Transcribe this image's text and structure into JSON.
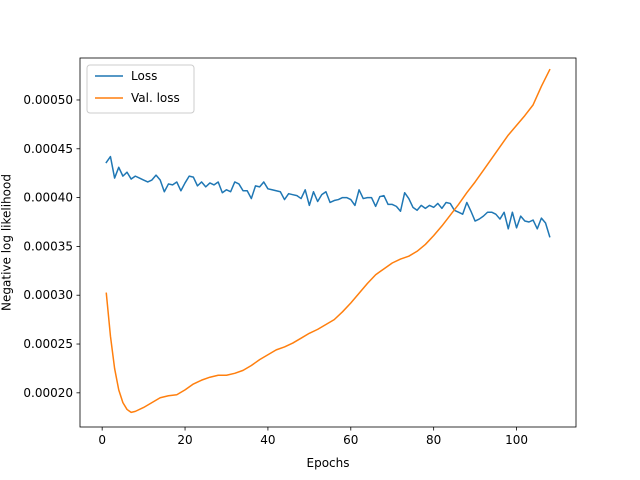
{
  "chart_data": {
    "type": "line",
    "title": "",
    "xlabel": "Epochs",
    "ylabel": "Negative log likelihood",
    "xlim": [
      -5.35,
      114.35
    ],
    "ylim": [
      0.000165,
      0.000543
    ],
    "xticks": [
      0,
      20,
      40,
      60,
      80,
      100
    ],
    "xtick_labels": [
      "0",
      "20",
      "40",
      "60",
      "80",
      "100"
    ],
    "yticks": [
      0.0002,
      0.00025,
      0.0003,
      0.00035,
      0.0004,
      0.00045,
      0.0005
    ],
    "ytick_labels": [
      "0.00020",
      "0.00025",
      "0.00030",
      "0.00035",
      "0.00040",
      "0.00045",
      "0.00050"
    ],
    "grid": false,
    "legend_position": "top-left",
    "series": [
      {
        "name": "Loss",
        "color": "#1f77b4",
        "x": [
          1,
          2,
          3,
          4,
          5,
          6,
          7,
          8,
          9,
          10,
          11,
          12,
          13,
          14,
          15,
          16,
          17,
          18,
          19,
          20,
          21,
          22,
          23,
          24,
          25,
          26,
          27,
          28,
          29,
          30,
          31,
          32,
          33,
          34,
          35,
          36,
          37,
          38,
          39,
          40,
          41,
          42,
          43,
          44,
          45,
          46,
          47,
          48,
          49,
          50,
          51,
          52,
          53,
          54,
          55,
          56,
          57,
          58,
          59,
          60,
          61,
          62,
          63,
          64,
          65,
          66,
          67,
          68,
          69,
          70,
          71,
          72,
          73,
          74,
          75,
          76,
          77,
          78,
          79,
          80,
          81,
          82,
          83,
          84,
          85,
          86,
          87,
          88,
          89,
          90,
          91,
          92,
          93,
          94,
          95,
          96,
          97,
          98,
          99,
          100,
          101,
          102,
          103,
          104,
          105,
          106,
          107,
          108
        ],
        "values": [
          0.000436,
          0.000442,
          0.00042,
          0.000431,
          0.000422,
          0.000426,
          0.000419,
          0.000422,
          0.00042,
          0.000418,
          0.000416,
          0.000418,
          0.000423,
          0.000418,
          0.000406,
          0.000414,
          0.000413,
          0.000416,
          0.000407,
          0.000415,
          0.000422,
          0.000421,
          0.000412,
          0.000416,
          0.000411,
          0.000415,
          0.000413,
          0.000416,
          0.000405,
          0.000408,
          0.000406,
          0.000416,
          0.000414,
          0.000407,
          0.000407,
          0.000399,
          0.000412,
          0.000411,
          0.000416,
          0.000409,
          0.000408,
          0.000407,
          0.000406,
          0.000398,
          0.000404,
          0.000403,
          0.000402,
          0.000399,
          0.000408,
          0.000392,
          0.000406,
          0.000396,
          0.000403,
          0.000406,
          0.000395,
          0.000397,
          0.000398,
          0.0004,
          0.0004,
          0.000398,
          0.000392,
          0.000408,
          0.000399,
          0.0004,
          0.0004,
          0.000391,
          0.000401,
          0.000402,
          0.000393,
          0.000393,
          0.000391,
          0.000386,
          0.000405,
          0.000399,
          0.00039,
          0.000387,
          0.000392,
          0.000389,
          0.000392,
          0.00039,
          0.000394,
          0.000389,
          0.000395,
          0.000394,
          0.000387,
          0.000385,
          0.000383,
          0.000395,
          0.000386,
          0.000376,
          0.000378,
          0.000381,
          0.000385,
          0.000385,
          0.000383,
          0.000378,
          0.000385,
          0.000368,
          0.000385,
          0.000369,
          0.000381,
          0.000376,
          0.000375,
          0.000377,
          0.000368,
          0.000379,
          0.000374,
          0.00036
        ]
      },
      {
        "name": "Val. loss",
        "color": "#ff7f0e",
        "x": [
          1,
          2,
          3,
          4,
          5,
          6,
          7,
          8,
          10,
          12,
          14,
          16,
          18,
          20,
          22,
          24,
          26,
          28,
          30,
          32,
          34,
          36,
          38,
          40,
          42,
          44,
          46,
          48,
          50,
          52,
          54,
          56,
          58,
          60,
          62,
          64,
          66,
          68,
          70,
          72,
          74,
          76,
          78,
          80,
          82,
          84,
          86,
          88,
          90,
          92,
          94,
          96,
          98,
          100,
          102,
          104,
          106,
          108
        ],
        "values": [
          0.000302,
          0.000258,
          0.000225,
          0.000203,
          0.00019,
          0.000183,
          0.00018,
          0.000181,
          0.000185,
          0.00019,
          0.000195,
          0.000197,
          0.000198,
          0.000203,
          0.000209,
          0.000213,
          0.000216,
          0.000218,
          0.000218,
          0.00022,
          0.000223,
          0.000228,
          0.000234,
          0.000239,
          0.000244,
          0.000247,
          0.000251,
          0.000256,
          0.000261,
          0.000265,
          0.00027,
          0.000275,
          0.000283,
          0.000292,
          0.000302,
          0.000312,
          0.000321,
          0.000327,
          0.000333,
          0.000337,
          0.00034,
          0.000345,
          0.000352,
          0.000361,
          0.000371,
          0.000382,
          0.000393,
          0.000405,
          0.000416,
          0.000428,
          0.00044,
          0.000452,
          0.000464,
          0.000474,
          0.000484,
          0.000495,
          0.000514,
          0.000531
        ]
      }
    ]
  }
}
